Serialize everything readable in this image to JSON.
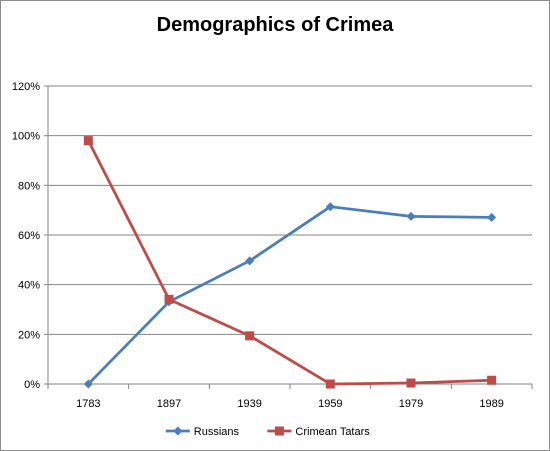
{
  "chart_data": {
    "type": "line",
    "title": "Demographics of Crimea",
    "xlabel": "",
    "ylabel": "",
    "categories": [
      "1783",
      "1897",
      "1939",
      "1959",
      "1979",
      "1989"
    ],
    "y_ticks": [
      "0%",
      "20%",
      "40%",
      "60%",
      "80%",
      "100%",
      "120%"
    ],
    "ylim": [
      0,
      120
    ],
    "grid": true,
    "legend_position": "bottom",
    "series": [
      {
        "name": "Russians",
        "values": [
          0,
          33.1,
          49.6,
          71.4,
          67.5,
          67.1
        ],
        "color": "#4a7ebb",
        "marker": "diamond"
      },
      {
        "name": "Crimean Tatars",
        "values": [
          98,
          34.1,
          19.4,
          0,
          0.4,
          1.5
        ],
        "color": "#be4b48",
        "marker": "square"
      }
    ]
  }
}
